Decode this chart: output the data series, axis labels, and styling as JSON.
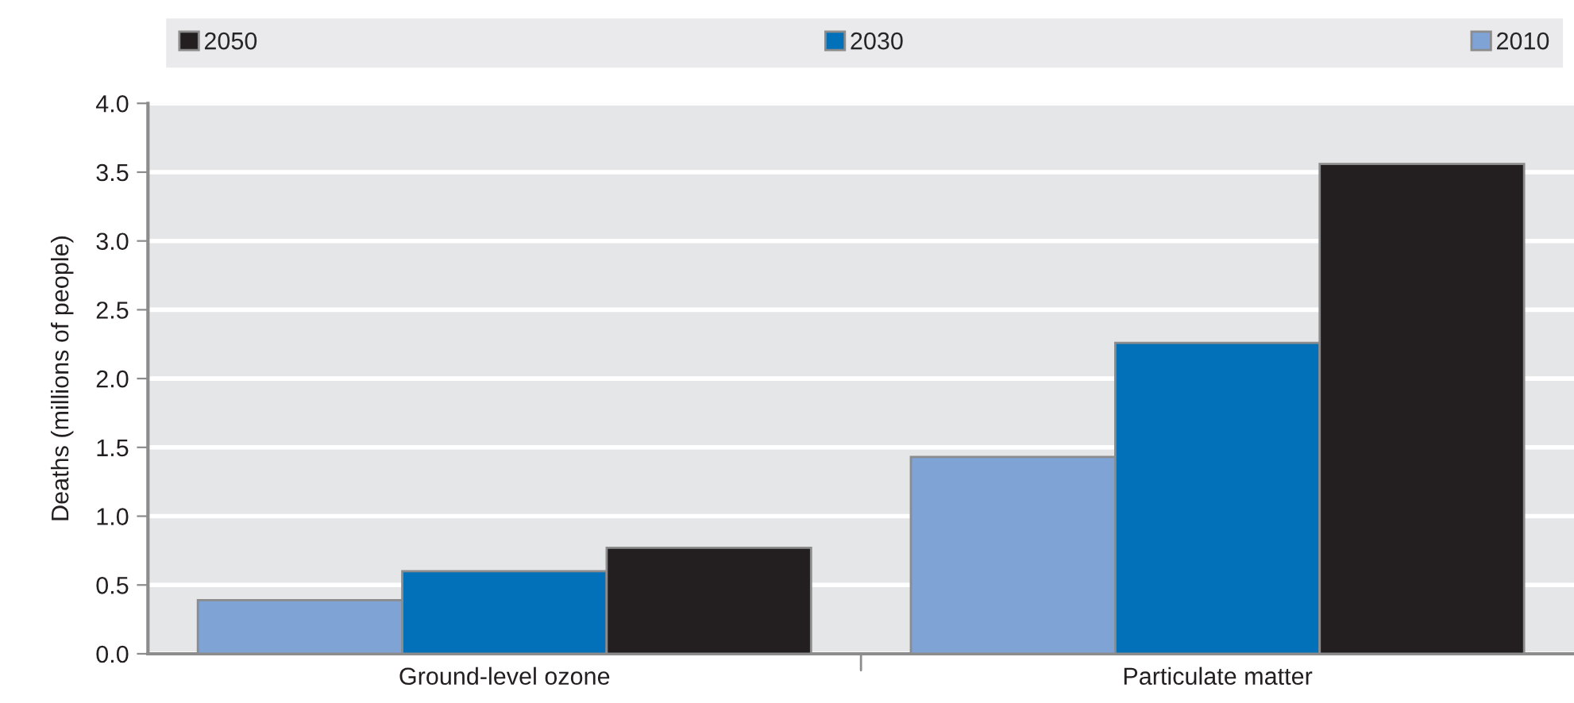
{
  "chart_data": {
    "type": "bar",
    "ylabel": "Deaths (millions of people)",
    "categories": [
      "Ground-level ozone",
      "Particulate matter"
    ],
    "series": [
      {
        "name": "2010",
        "color": "#7fa3d4",
        "values": [
          0.39,
          1.43
        ]
      },
      {
        "name": "2030",
        "color": "#0371b9",
        "values": [
          0.6,
          2.26
        ]
      },
      {
        "name": "2050",
        "color": "#231f20",
        "values": [
          0.77,
          3.56
        ]
      }
    ],
    "ylim": [
      0,
      4
    ],
    "yticks": [
      {
        "value": 0,
        "label": "0.0"
      },
      0.5,
      {
        "value": 1,
        "label": "1.0"
      },
      1.5,
      {
        "value": 2,
        "label": "2.0"
      },
      2.5,
      {
        "value": 3,
        "label": "3.0"
      },
      3.5,
      {
        "value": 4,
        "label": "4.0"
      }
    ],
    "grid": "y",
    "legend": "top"
  }
}
